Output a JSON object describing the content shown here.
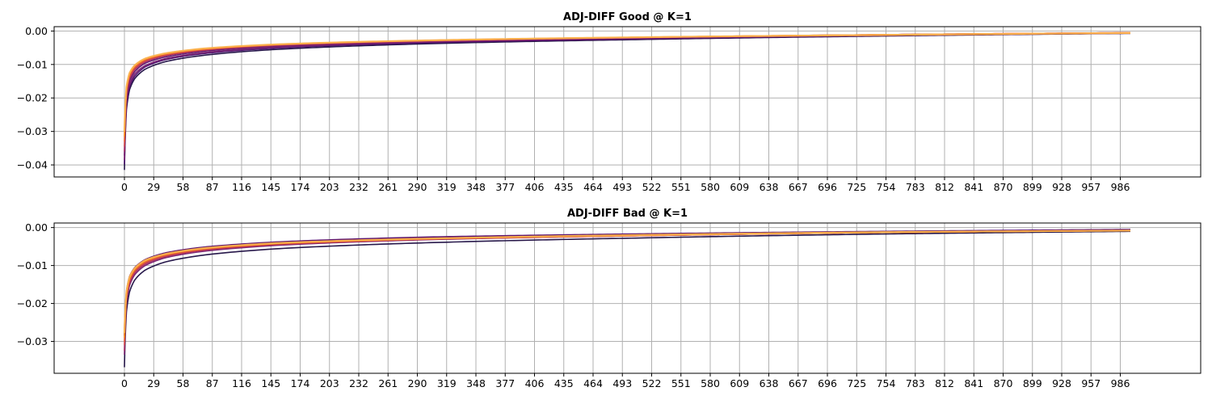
{
  "chart_data": [
    {
      "type": "line",
      "title": "ADJ-DIFF Good @ K=1",
      "xlabel": "",
      "ylabel": "",
      "grid": true,
      "xlim": [
        -69.6,
        1065.6
      ],
      "ylim": [
        -0.0436,
        0.0013
      ],
      "x_ticks": [
        0,
        29,
        58,
        87,
        116,
        145,
        174,
        203,
        232,
        261,
        290,
        319,
        348,
        377,
        406,
        435,
        464,
        493,
        522,
        551,
        580,
        609,
        638,
        667,
        696,
        725,
        754,
        783,
        812,
        841,
        870,
        899,
        928,
        957,
        986
      ],
      "y_ticks": [
        0.0,
        -0.01,
        -0.02,
        -0.03,
        -0.04
      ],
      "y_tick_labels": [
        "0.00",
        "−0.01",
        "−0.02",
        "−0.03",
        "−0.04"
      ],
      "x_range": [
        0,
        996
      ],
      "series": [
        {
          "color": "#1b0c41",
          "points": [
            [
              0,
              -0.0415
            ],
            [
              2,
              -0.0235
            ],
            [
              5,
              -0.0176
            ],
            [
              10,
              -0.0143
            ],
            [
              20,
              -0.0115
            ],
            [
              40,
              -0.0092
            ],
            [
              80,
              -0.0072
            ],
            [
              150,
              -0.0055
            ],
            [
              300,
              -0.0038
            ],
            [
              500,
              -0.0026
            ],
            [
              750,
              -0.0015
            ],
            [
              996,
              -0.0007
            ]
          ]
        },
        {
          "color": "#4a0c6b",
          "points": [
            [
              0,
              -0.0398
            ],
            [
              2,
              -0.0222
            ],
            [
              5,
              -0.0167
            ],
            [
              10,
              -0.0136
            ],
            [
              20,
              -0.0108
            ],
            [
              40,
              -0.0086
            ],
            [
              80,
              -0.0067
            ],
            [
              150,
              -0.0051
            ],
            [
              300,
              -0.0035
            ],
            [
              500,
              -0.0024
            ],
            [
              750,
              -0.0014
            ],
            [
              996,
              -0.0007
            ]
          ]
        },
        {
          "color": "#5c126e",
          "points": [
            [
              0,
              -0.0372
            ],
            [
              2,
              -0.02
            ],
            [
              5,
              -0.015
            ],
            [
              10,
              -0.0122
            ],
            [
              20,
              -0.0097
            ],
            [
              40,
              -0.0078
            ],
            [
              80,
              -0.006
            ],
            [
              150,
              -0.0045
            ],
            [
              300,
              -0.0031
            ],
            [
              500,
              -0.0021
            ],
            [
              750,
              -0.0012
            ],
            [
              996,
              -0.0006
            ]
          ]
        },
        {
          "color": "#781c6d",
          "points": [
            [
              0,
              -0.0385
            ],
            [
              2,
              -0.0212
            ],
            [
              5,
              -0.016
            ],
            [
              10,
              -0.0129
            ],
            [
              20,
              -0.0104
            ],
            [
              40,
              -0.0083
            ],
            [
              80,
              -0.0064
            ],
            [
              150,
              -0.0048
            ],
            [
              300,
              -0.0033
            ],
            [
              500,
              -0.0023
            ],
            [
              750,
              -0.0013
            ],
            [
              996,
              -0.0006
            ]
          ]
        },
        {
          "color": "#a52c60",
          "points": [
            [
              0,
              -0.036
            ],
            [
              2,
              -0.0192
            ],
            [
              5,
              -0.0143
            ],
            [
              10,
              -0.0116
            ],
            [
              20,
              -0.0093
            ],
            [
              40,
              -0.0074
            ],
            [
              80,
              -0.0057
            ],
            [
              150,
              -0.0043
            ],
            [
              300,
              -0.003
            ],
            [
              500,
              -0.002
            ],
            [
              750,
              -0.0011
            ],
            [
              996,
              -0.0005
            ]
          ]
        },
        {
          "color": "#cf4446",
          "points": [
            [
              0,
              -0.0345
            ],
            [
              2,
              -0.0186
            ],
            [
              5,
              -0.0139
            ],
            [
              10,
              -0.0112
            ],
            [
              20,
              -0.009
            ],
            [
              40,
              -0.0072
            ],
            [
              80,
              -0.0056
            ],
            [
              150,
              -0.0042
            ],
            [
              300,
              -0.0029
            ],
            [
              500,
              -0.002
            ],
            [
              750,
              -0.0011
            ],
            [
              996,
              -0.0005
            ]
          ]
        },
        {
          "color": "#e65d2f",
          "points": [
            [
              0,
              -0.033
            ],
            [
              2,
              -0.0178
            ],
            [
              5,
              -0.0133
            ],
            [
              10,
              -0.0108
            ],
            [
              20,
              -0.0087
            ],
            [
              40,
              -0.007
            ],
            [
              80,
              -0.0054
            ],
            [
              150,
              -0.0041
            ],
            [
              300,
              -0.0028
            ],
            [
              500,
              -0.0019
            ],
            [
              750,
              -0.0011
            ],
            [
              996,
              -0.0005
            ]
          ]
        },
        {
          "color": "#f8850f",
          "points": [
            [
              0,
              -0.0315
            ],
            [
              2,
              -0.0172
            ],
            [
              5,
              -0.0129
            ],
            [
              10,
              -0.0105
            ],
            [
              20,
              -0.0085
            ],
            [
              40,
              -0.0068
            ],
            [
              80,
              -0.0053
            ],
            [
              150,
              -0.004
            ],
            [
              300,
              -0.0028
            ],
            [
              500,
              -0.0019
            ],
            [
              750,
              -0.0011
            ],
            [
              996,
              -0.0006
            ]
          ]
        },
        {
          "color": "#fbb14e",
          "points": [
            [
              0,
              -0.03
            ],
            [
              2,
              -0.0168
            ],
            [
              5,
              -0.0126
            ],
            [
              10,
              -0.0103
            ],
            [
              20,
              -0.0083
            ],
            [
              40,
              -0.0067
            ],
            [
              80,
              -0.0052
            ],
            [
              150,
              -0.004
            ],
            [
              300,
              -0.0028
            ],
            [
              500,
              -0.0019
            ],
            [
              750,
              -0.0012
            ],
            [
              996,
              -0.0006
            ]
          ]
        }
      ]
    },
    {
      "type": "line",
      "title": "ADJ-DIFF Bad @ K=1",
      "xlabel": "",
      "ylabel": "",
      "grid": true,
      "xlim": [
        -69.6,
        1065.6
      ],
      "ylim": [
        -0.0384,
        0.0012
      ],
      "x_ticks": [
        0,
        29,
        58,
        87,
        116,
        145,
        174,
        203,
        232,
        261,
        290,
        319,
        348,
        377,
        406,
        435,
        464,
        493,
        522,
        551,
        580,
        609,
        638,
        667,
        696,
        725,
        754,
        783,
        812,
        841,
        870,
        899,
        928,
        957,
        986
      ],
      "y_ticks": [
        0.0,
        -0.01,
        -0.02,
        -0.03
      ],
      "y_tick_labels": [
        "0.00",
        "−0.01",
        "−0.02",
        "−0.03"
      ],
      "x_range": [
        0,
        996
      ],
      "series": [
        {
          "color": "#1b0c41",
          "points": [
            [
              0,
              -0.0368
            ],
            [
              2,
              -0.0222
            ],
            [
              5,
              -0.017
            ],
            [
              10,
              -0.0139
            ],
            [
              20,
              -0.0113
            ],
            [
              40,
              -0.0091
            ],
            [
              80,
              -0.0072
            ],
            [
              150,
              -0.0056
            ],
            [
              300,
              -0.004
            ],
            [
              500,
              -0.0028
            ],
            [
              750,
              -0.0017
            ],
            [
              996,
              -0.001
            ]
          ]
        },
        {
          "color": "#4a0c6b",
          "points": [
            [
              0,
              -0.0285
            ],
            [
              2,
              -0.0175
            ],
            [
              5,
              -0.0134
            ],
            [
              10,
              -0.011
            ],
            [
              20,
              -0.0088
            ],
            [
              40,
              -0.0069
            ],
            [
              80,
              -0.0052
            ],
            [
              150,
              -0.0039
            ],
            [
              300,
              -0.0026
            ],
            [
              500,
              -0.0018
            ],
            [
              750,
              -0.0011
            ],
            [
              996,
              -0.0006
            ]
          ]
        },
        {
          "color": "#5c126e",
          "points": [
            [
              0,
              -0.027
            ],
            [
              2,
              -0.0168
            ],
            [
              5,
              -0.0129
            ],
            [
              10,
              -0.0106
            ],
            [
              20,
              -0.0085
            ],
            [
              40,
              -0.0067
            ],
            [
              80,
              -0.0051
            ],
            [
              150,
              -0.0038
            ],
            [
              300,
              -0.0025
            ],
            [
              500,
              -0.0017
            ],
            [
              750,
              -0.001
            ],
            [
              996,
              -0.0005
            ]
          ]
        },
        {
          "color": "#781c6d",
          "points": [
            [
              0,
              -0.0335
            ],
            [
              2,
              -0.02
            ],
            [
              5,
              -0.0153
            ],
            [
              10,
              -0.0125
            ],
            [
              20,
              -0.0101
            ],
            [
              40,
              -0.008
            ],
            [
              80,
              -0.0062
            ],
            [
              150,
              -0.0047
            ],
            [
              300,
              -0.0032
            ],
            [
              500,
              -0.0022
            ],
            [
              750,
              -0.0013
            ],
            [
              996,
              -0.0007
            ]
          ]
        },
        {
          "color": "#a52c60",
          "points": [
            [
              0,
              -0.0325
            ],
            [
              2,
              -0.0193
            ],
            [
              5,
              -0.0147
            ],
            [
              10,
              -0.012
            ],
            [
              20,
              -0.0097
            ],
            [
              40,
              -0.0077
            ],
            [
              80,
              -0.0059
            ],
            [
              150,
              -0.0045
            ],
            [
              300,
              -0.0031
            ],
            [
              500,
              -0.0022
            ],
            [
              750,
              -0.0013
            ],
            [
              996,
              -0.0008
            ]
          ]
        },
        {
          "color": "#cf4446",
          "points": [
            [
              0,
              -0.031
            ],
            [
              2,
              -0.0186
            ],
            [
              5,
              -0.0142
            ],
            [
              10,
              -0.0116
            ],
            [
              20,
              -0.0094
            ],
            [
              40,
              -0.0075
            ],
            [
              80,
              -0.0058
            ],
            [
              150,
              -0.0044
            ],
            [
              300,
              -0.0031
            ],
            [
              500,
              -0.0022
            ],
            [
              750,
              -0.0013
            ],
            [
              996,
              -0.0008
            ]
          ]
        },
        {
          "color": "#e65d2f",
          "points": [
            [
              0,
              -0.03
            ],
            [
              2,
              -0.018
            ],
            [
              5,
              -0.0138
            ],
            [
              10,
              -0.0113
            ],
            [
              20,
              -0.0091
            ],
            [
              40,
              -0.0073
            ],
            [
              80,
              -0.0056
            ],
            [
              150,
              -0.0043
            ],
            [
              300,
              -0.003
            ],
            [
              500,
              -0.0021
            ],
            [
              750,
              -0.0013
            ],
            [
              996,
              -0.0008
            ]
          ]
        },
        {
          "color": "#f8850f",
          "points": [
            [
              0,
              -0.029
            ],
            [
              2,
              -0.0176
            ],
            [
              5,
              -0.0135
            ],
            [
              10,
              -0.0111
            ],
            [
              20,
              -0.0089
            ],
            [
              40,
              -0.0071
            ],
            [
              80,
              -0.0055
            ],
            [
              150,
              -0.0042
            ],
            [
              300,
              -0.0029
            ],
            [
              500,
              -0.0021
            ],
            [
              750,
              -0.0013
            ],
            [
              996,
              -0.0008
            ]
          ]
        },
        {
          "color": "#fbb14e",
          "points": [
            [
              0,
              -0.0278
            ],
            [
              2,
              -0.017
            ],
            [
              5,
              -0.0131
            ],
            [
              10,
              -0.0108
            ],
            [
              20,
              -0.0087
            ],
            [
              40,
              -0.007
            ],
            [
              80,
              -0.0054
            ],
            [
              150,
              -0.0041
            ],
            [
              300,
              -0.0029
            ],
            [
              500,
              -0.002
            ],
            [
              750,
              -0.0012
            ],
            [
              996,
              -0.0008
            ]
          ]
        }
      ]
    }
  ]
}
